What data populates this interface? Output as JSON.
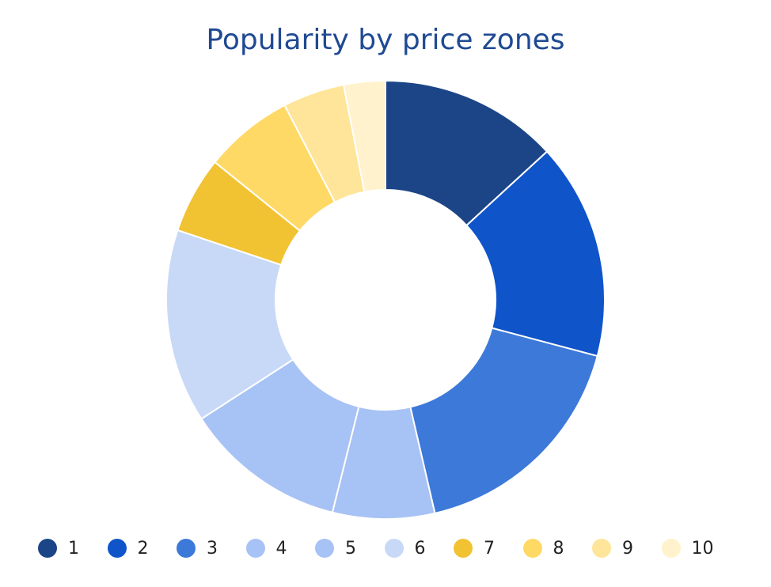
{
  "chart_data": {
    "type": "pie",
    "donut": true,
    "title": "Popularity by price zones",
    "categories": [
      "1",
      "2",
      "3",
      "4",
      "5",
      "6",
      "7",
      "8",
      "9",
      "10"
    ],
    "values": [
      14.2,
      17.2,
      18.6,
      8.1,
      12.9,
      15.4,
      6.1,
      7.1,
      4.9,
      3.3
    ],
    "colors": [
      "#1c4587",
      "#0f54c9",
      "#3d79d9",
      "#a7c2f4",
      "#a7c2f4",
      "#c8d9f7",
      "#f1c232",
      "#ffd966",
      "#ffe599",
      "#fff2cc"
    ],
    "legend_position": "bottom"
  }
}
